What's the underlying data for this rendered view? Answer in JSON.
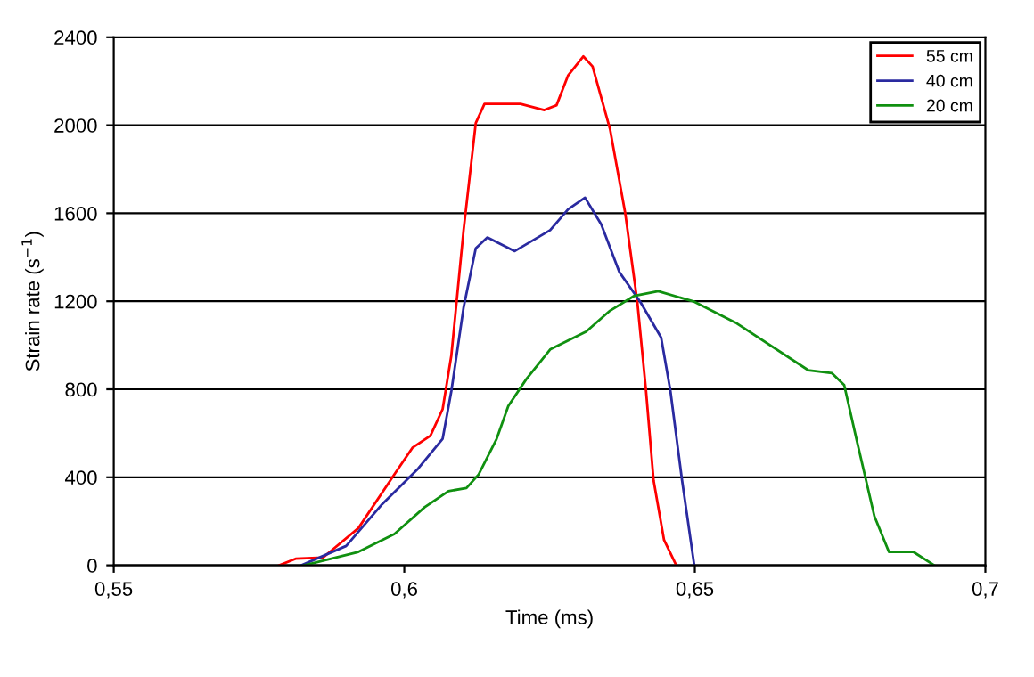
{
  "chart_data": {
    "type": "line",
    "xlabel": "Time (ms)",
    "ylabel": "Strain rate (s$^{−1}$)",
    "xlim": [
      0.55,
      0.7
    ],
    "xticks": [
      {
        "value": 0.55,
        "label": "0,55"
      },
      {
        "value": 0.6,
        "label": "0,6"
      },
      {
        "value": 0.65,
        "label": "0,65"
      },
      {
        "value": 0.7,
        "label": "0,7"
      }
    ],
    "ylim": [
      0,
      2400
    ],
    "yticks": [
      0,
      400,
      800,
      1200,
      1600,
      2000,
      2400
    ],
    "grid": "y",
    "legend": "top right",
    "marker": "none",
    "line_style": "solid",
    "series": [
      {
        "name": "55 cm",
        "color": "#ff0000",
        "x": [
          0.5785,
          0.5813,
          0.586,
          0.5921,
          0.5983,
          0.6014,
          0.6045,
          0.6066,
          0.6081,
          0.6102,
          0.6123,
          0.6138,
          0.62,
          0.6241,
          0.6262,
          0.6282,
          0.6308,
          0.6324,
          0.6354,
          0.638,
          0.6401,
          0.6416,
          0.6429,
          0.6447,
          0.6468
        ],
        "values": [
          0,
          30,
          35,
          169,
          413,
          534,
          589,
          710,
          954,
          1522,
          2010,
          2097,
          2097,
          2069,
          2091,
          2227,
          2313,
          2267,
          1983,
          1604,
          1198,
          792,
          386,
          115,
          0
        ]
      },
      {
        "name": "40 cm",
        "color": "#2a2aa0",
        "x": [
          0.5823,
          0.59,
          0.5962,
          0.6024,
          0.6066,
          0.6081,
          0.6102,
          0.6123,
          0.6143,
          0.619,
          0.6251,
          0.6282,
          0.6311,
          0.6339,
          0.637,
          0.6406,
          0.6442,
          0.6458,
          0.6478,
          0.6499
        ],
        "values": [
          0,
          88,
          278,
          440,
          575,
          792,
          1171,
          1441,
          1490,
          1428,
          1523,
          1618,
          1671,
          1549,
          1333,
          1198,
          1035,
          792,
          386,
          0
        ]
      },
      {
        "name": "20 cm",
        "color": "#109010",
        "x": [
          0.5828,
          0.5921,
          0.5983,
          0.6035,
          0.6076,
          0.6107,
          0.6128,
          0.6159,
          0.6179,
          0.621,
          0.6251,
          0.6313,
          0.6354,
          0.6396,
          0.6437,
          0.6499,
          0.657,
          0.6695,
          0.6736,
          0.6757,
          0.6778,
          0.6809,
          0.6834,
          0.6876,
          0.6912
        ],
        "values": [
          0,
          61,
          142,
          264,
          337,
          351,
          413,
          575,
          724,
          846,
          981,
          1062,
          1157,
          1225,
          1246,
          1198,
          1103,
          887,
          873,
          819,
          575,
          223,
          61,
          61,
          0
        ]
      }
    ]
  }
}
